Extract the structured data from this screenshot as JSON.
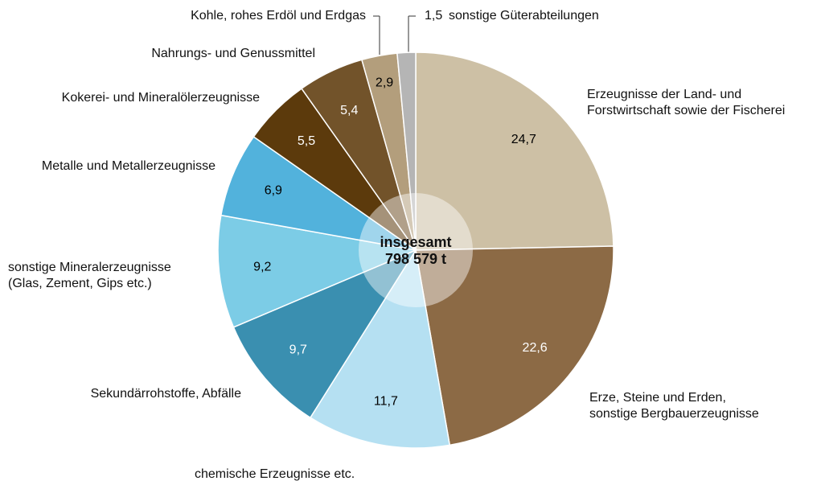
{
  "chart_data": {
    "type": "pie",
    "categories": [
      "Erzeugnisse der Land- und\nForstwirtschaft sowie der Fischerei",
      "Erze, Steine und Erden,\nsonstige Bergbauerzeugnisse",
      "chemische Erzeugnisse etc.",
      "Sekundärrohstoffe, Abfälle",
      "sonstige Mineralerzeugnisse\n(Glas, Zement, Gips etc.)",
      "Metalle und Metallerzeugnisse",
      "Kokerei- und Mineralölerzeugnisse",
      "Nahrungs- und Genussmittel",
      "Kohle, rohes Erdöl und Erdgas",
      "sonstige Güterabteilungen"
    ],
    "values": [
      24.7,
      22.6,
      11.7,
      9.7,
      9.2,
      6.9,
      5.5,
      5.4,
      2.9,
      1.5
    ],
    "value_labels": [
      "24,7",
      "22,6",
      "11,7",
      "9,7",
      "9,2",
      "6,9",
      "5,5",
      "5,4",
      "2,9",
      "1,5"
    ],
    "colors": [
      "#cdc0a5",
      "#8c6a45",
      "#b5e0f2",
      "#3a8fb0",
      "#7ccce6",
      "#52b2dc",
      "#5c3a0c",
      "#72532a",
      "#b39e7c",
      "#b5b5b5"
    ],
    "value_label_colors": [
      "#000000",
      "#ffffff",
      "#000000",
      "#ffffff",
      "#000000",
      "#000000",
      "#ffffff",
      "#ffffff",
      "#000000",
      "#000000"
    ],
    "center_title": "insgesamt",
    "center_value": "798 579 t"
  }
}
